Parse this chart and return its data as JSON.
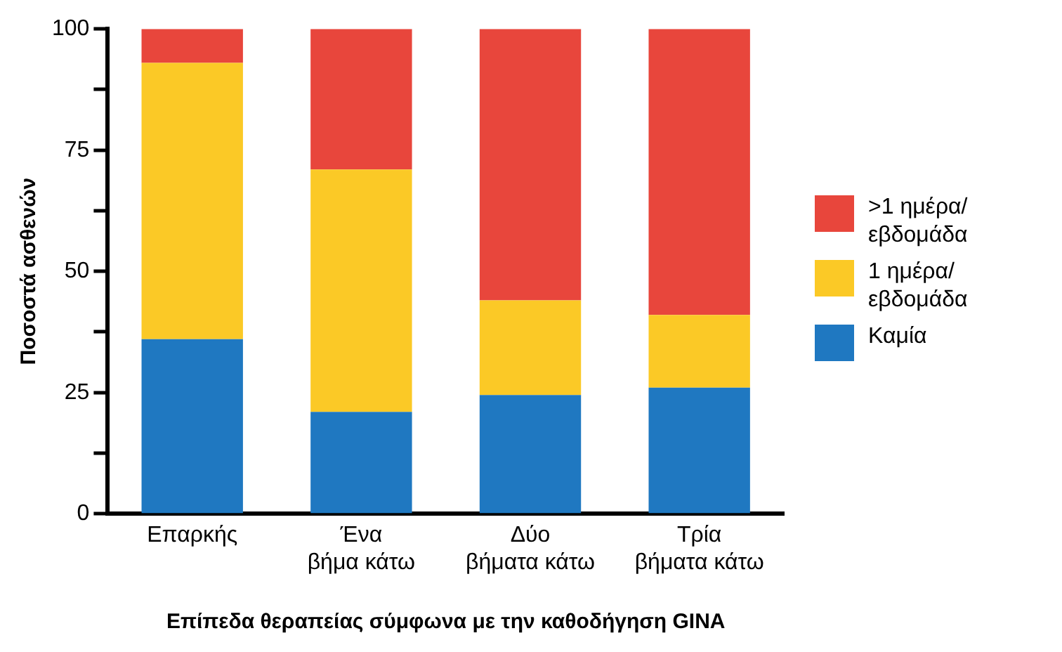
{
  "chart_data": {
    "type": "bar",
    "stacked": true,
    "xlabel": "Επίπεδα θεραπείας σύμφωνα με την καθοδήγηση GINA",
    "ylabel": "Ποσοστά ασθενών",
    "categories": [
      "Επαρκής",
      "Ένα βήμα κάτω",
      "Δύο βήματα κάτω",
      "Τρία βήματα κάτω"
    ],
    "series": [
      {
        "name": "Καμία",
        "color": "#1f78c1",
        "values": [
          36,
          21,
          24.5,
          26
        ]
      },
      {
        "name": "1 ημέρα/ εβδομάδα",
        "color": "#fbc926",
        "values": [
          57,
          50,
          19.5,
          15
        ]
      },
      {
        "name": ">1 ημέρα/ εβδομάδα",
        "color": "#e8463c",
        "values": [
          7,
          29,
          56,
          59
        ]
      }
    ],
    "ylim": [
      0,
      100
    ],
    "yticks": [
      0,
      {
        "value": 12.5,
        "label": null
      },
      25,
      {
        "value": 37.5,
        "label": null
      },
      50,
      {
        "value": 62.5,
        "label": null
      },
      75,
      {
        "value": 87.5,
        "label": null
      },
      100
    ],
    "grid": false,
    "legend": "right"
  }
}
